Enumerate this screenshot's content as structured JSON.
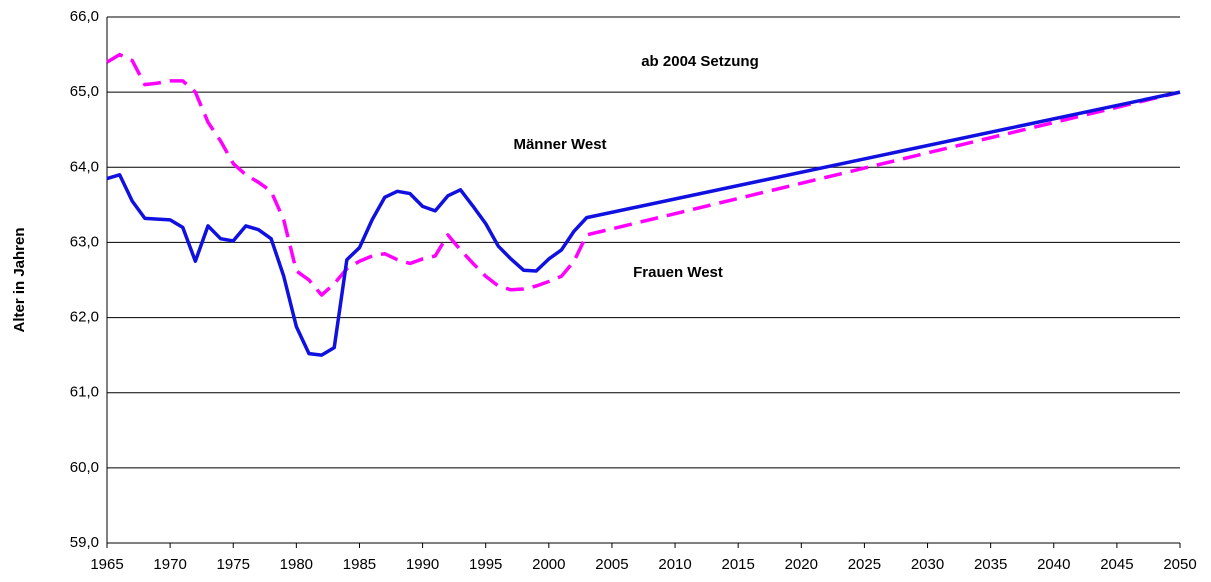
{
  "chart_data": {
    "type": "line",
    "y_label": "Alter in Jahren",
    "annotations": [
      "ab 2004 Setzung"
    ],
    "x": [
      1965,
      1966,
      1967,
      1968,
      1969,
      1970,
      1971,
      1972,
      1973,
      1974,
      1975,
      1976,
      1977,
      1978,
      1979,
      1980,
      1981,
      1982,
      1983,
      1984,
      1985,
      1986,
      1987,
      1988,
      1989,
      1990,
      1991,
      1992,
      1993,
      1994,
      1995,
      1996,
      1997,
      1998,
      1999,
      2000,
      2001,
      2002,
      2003,
      2050
    ],
    "series": [
      {
        "name": "Männer West",
        "color": "#1010e0",
        "dashed": false,
        "values": [
          63.85,
          63.9,
          63.55,
          63.32,
          63.31,
          63.3,
          63.2,
          62.75,
          63.22,
          63.05,
          63.02,
          63.22,
          63.17,
          63.05,
          62.55,
          61.88,
          61.52,
          61.5,
          61.6,
          62.77,
          62.93,
          63.3,
          63.6,
          63.68,
          63.65,
          63.48,
          63.42,
          63.62,
          63.7,
          63.48,
          63.25,
          62.95,
          62.78,
          62.63,
          62.62,
          62.78,
          62.9,
          63.15,
          63.33,
          65.0
        ]
      },
      {
        "name": "Frauen West",
        "color": "#ff00ff",
        "dashed": true,
        "values": [
          65.4,
          65.5,
          65.42,
          65.1,
          65.12,
          65.15,
          65.15,
          65.0,
          64.6,
          64.35,
          64.05,
          63.9,
          63.8,
          63.68,
          63.3,
          62.62,
          62.5,
          62.3,
          62.45,
          62.65,
          62.75,
          62.82,
          62.85,
          62.77,
          62.72,
          62.78,
          62.82,
          63.1,
          62.9,
          62.72,
          62.55,
          62.42,
          62.37,
          62.38,
          62.42,
          62.48,
          62.55,
          62.75,
          63.1,
          65.0
        ]
      }
    ],
    "xlim": [
      1965,
      2050
    ],
    "xticks": [
      1965,
      1970,
      1975,
      1980,
      1985,
      1990,
      1995,
      2000,
      2005,
      2010,
      2015,
      2020,
      2025,
      2030,
      2035,
      2040,
      2045,
      2050
    ],
    "ylim": [
      59,
      66
    ],
    "yticks": [
      {
        "value": 59,
        "label": "59,0"
      },
      {
        "value": 60,
        "label": "60,0"
      },
      {
        "value": 61,
        "label": "61,0"
      },
      {
        "value": 62,
        "label": "62,0"
      },
      {
        "value": 63,
        "label": "63,0"
      },
      {
        "value": 64,
        "label": "64,0"
      },
      {
        "value": 65,
        "label": "65,0"
      },
      {
        "value": 66,
        "label": "66,0"
      }
    ],
    "grid": true
  }
}
